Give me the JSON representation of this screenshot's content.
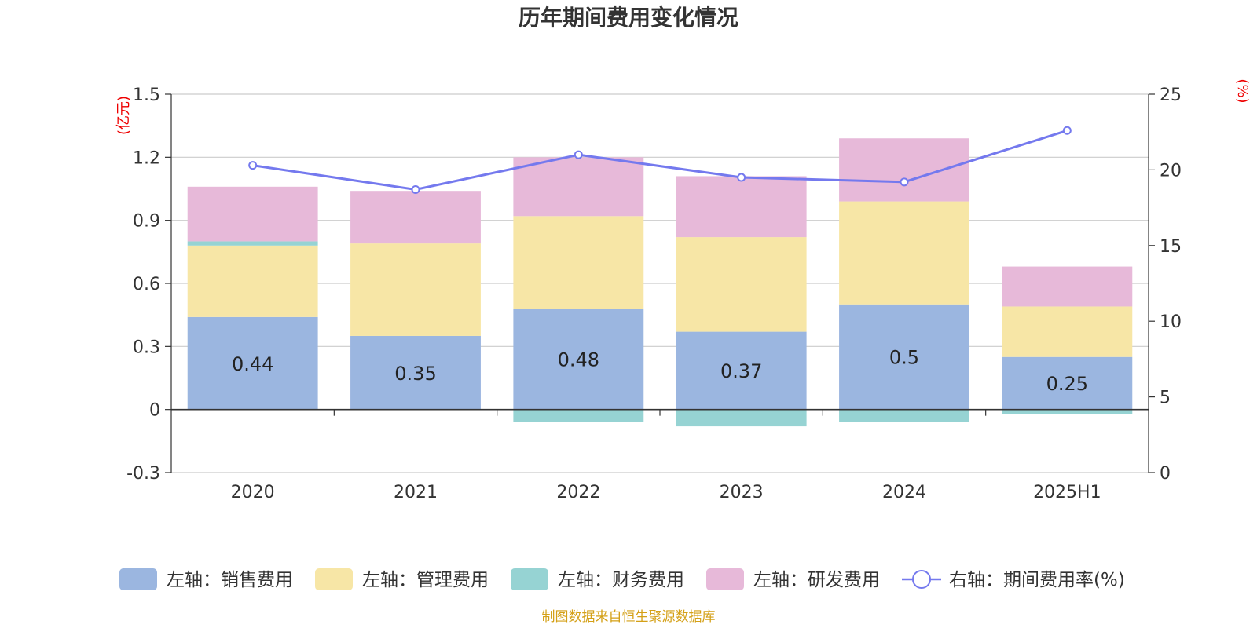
{
  "chart_data": {
    "type": "bar",
    "title": "历年期间费用变化情况",
    "categories": [
      "2020",
      "2021",
      "2022",
      "2023",
      "2024",
      "2025H1"
    ],
    "left_axis": {
      "unit": "(亿元)",
      "ylim": [
        -0.3,
        1.5
      ],
      "ticks": [
        -0.3,
        0,
        0.3,
        0.6,
        0.9,
        1.2,
        1.5
      ],
      "tick_labels": [
        "-0.3",
        "0",
        "0.3",
        "0.6",
        "0.9",
        "1.2",
        "1.5"
      ]
    },
    "right_axis": {
      "unit": "(%)",
      "ylim": [
        0,
        25
      ],
      "ticks": [
        0,
        5,
        10,
        15,
        20,
        25
      ],
      "tick_labels": [
        "0",
        "5",
        "10",
        "15",
        "20",
        "25"
      ]
    },
    "series": [
      {
        "name": "左轴：销售费用",
        "kind": "bar",
        "axis": "left",
        "color": "#9bb6e0",
        "values": [
          0.44,
          0.35,
          0.48,
          0.37,
          0.5,
          0.25
        ],
        "data_labels": [
          "0.44",
          "0.35",
          "0.48",
          "0.37",
          "0.5",
          "0.25"
        ]
      },
      {
        "name": "左轴：管理费用",
        "kind": "bar",
        "axis": "left",
        "color": "#f7e6a6",
        "values": [
          0.34,
          0.44,
          0.44,
          0.45,
          0.49,
          0.24
        ]
      },
      {
        "name": "左轴：财务费用",
        "kind": "bar",
        "axis": "left",
        "color": "#96d3d3",
        "values": [
          0.02,
          0.0,
          -0.06,
          -0.08,
          -0.06,
          -0.02
        ]
      },
      {
        "name": "左轴：研发费用",
        "kind": "bar",
        "axis": "left",
        "color": "#e7b9d9",
        "values": [
          0.26,
          0.25,
          0.28,
          0.29,
          0.3,
          0.19
        ]
      },
      {
        "name": "右轴：期间费用率(%)",
        "kind": "line",
        "axis": "right",
        "color": "#7479ee",
        "values": [
          20.3,
          18.7,
          21.0,
          19.5,
          19.2,
          22.6
        ]
      }
    ],
    "grid": true,
    "legend_position": "bottom"
  },
  "source_text": "制图数据来自恒生聚源数据库",
  "colors": {
    "axis_unit": "#ee0000",
    "source": "#d4a017",
    "grid": "#cccccc"
  }
}
